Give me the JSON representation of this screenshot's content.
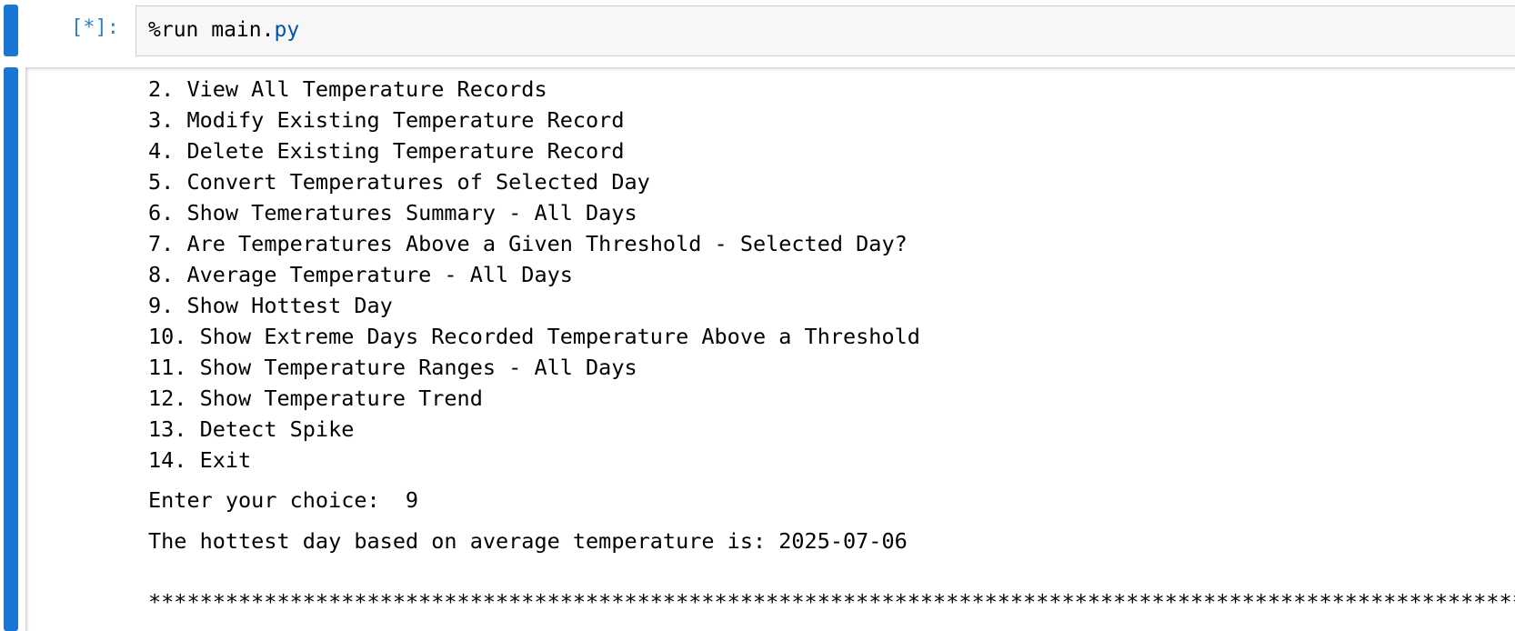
{
  "cell": {
    "prompt": "[*]:",
    "code": [
      "%run main.",
      "py"
    ]
  },
  "output": {
    "menu": [
      "2. View All Temperature Records",
      "3. Modify Existing Temperature Record",
      "4. Delete Existing Temperature Record",
      "5. Convert Temperatures of Selected Day",
      "6. Show Temeratures Summary - All Days",
      "7. Are Temperatures Above a Given Threshold - Selected Day?",
      "8. Average Temperature - All Days",
      "9. Show Hottest Day",
      "10. Show Extreme Days Recorded Temperature Above a Threshold",
      "11. Show Temperature Ranges - All Days",
      "12. Show Temperature Trend",
      "13. Detect Spike",
      "14. Exit"
    ],
    "input_prompt": "Enter your choice: ",
    "input_value": "9",
    "result": "The hottest day based on average temperature is: 2025-07-06",
    "separator": "**************************************************************************************************************"
  }
}
